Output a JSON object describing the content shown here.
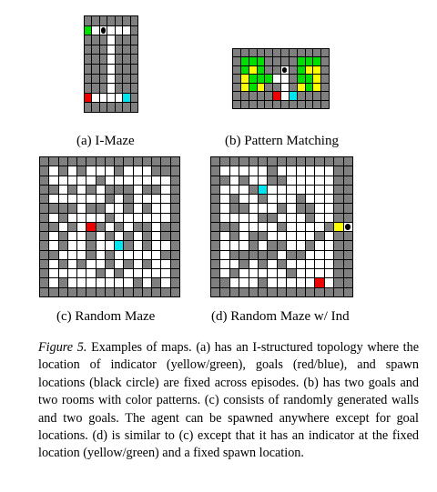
{
  "colors": {
    "wall": "#7f7f7f",
    "floor": "#ffffff",
    "grid_line": "#000000",
    "goal_red": "#ee0000",
    "goal_blue": "#00e5ee",
    "indicator_yellow": "#ffff00",
    "indicator_green": "#00e000",
    "agent": "#000000"
  },
  "legend_codes": {
    "W": "wall",
    ".": "floor",
    "R": "goal red",
    "B": "goal blue",
    "Y": "indicator yellow",
    "G": "indicator green",
    "A": "agent spawn (black circle)"
  },
  "panels": [
    {
      "id": "imaze",
      "label": "(a) I-Maze",
      "rows": [
        "WWWWWWW",
        "G.A...W",
        "WWW.WWW",
        "WWW.WWW",
        "WWW.WWW",
        "WWW.WWW",
        "WWW.WWW",
        "WWW.WWW",
        "R....BW",
        "WWWWWWW"
      ]
    },
    {
      "id": "pattern",
      "label": "(b) Pattern Matching",
      "rows": [
        "WWWWWWWWWWWW",
        "WGGGWWWWGGGW",
        "WGYGWWAWGYYW",
        "WYGGG..WGGYW",
        "WYGYWW.WYGYW",
        "WWWWWR.BWWWW",
        "WWWWWWWWWWWW"
      ]
    },
    {
      "id": "random",
      "label": "(c) Random Maze",
      "rows": [
        "WWWWWWWWWWWWWWW",
        "W.W.W...W...WWW",
        "W.....W.......W",
        "WW.W.W.WWW.WW.W",
        "W......W.W....W",
        "WWWW.WW..W.W..W",
        "W.W....W......W",
        "WW.W.RW.W.WW.WW",
        "W.W..W.W.W.W.WW",
        "W.W..W..BW.W..W",
        "WW...W.W.....WW",
        "W.W.W..W.W.W..W",
        "W.....W.W.....W",
        "W.W.......W.W.W",
        "WWWWWWWWWWWWWWW"
      ]
    },
    {
      "id": "random_ind",
      "label": "(d) Random Maze w/ Ind",
      "rows": [
        "WWWWWWWWWWWWWWW",
        "W.....W......WW",
        "WW.W..WW.....WW",
        "W...WB.......WW",
        "W.W..W...W...WW",
        "W.WW...W.WW..WW",
        "W....WW...W..WW",
        "WWW....W....WYA",
        "W.W.WW.....W.WW",
        "W...W.WW..W..WW",
        "W.WWWWW.WW...WW",
        "W..W.W.W.....WW",
        "W.W.....W....WW",
        "WW...W.....R.WW",
        "WWWWWWWWWWWWWWW"
      ]
    }
  ],
  "caption": {
    "figure_label": "Figure 5.",
    "text": "Examples of maps. (a) has an I-structured topology where the location of indicator (yellow/green), goals (red/blue), and spawn locations (black circle) are fixed across episodes. (b) has two goals and two rooms with color patterns. (c) consists of randomly generated walls and two goals. The agent can be spawned anywhere except for goal locations. (d) is similar to (c) except that it has an indicator at the fixed location (yellow/green) and a fixed spawn location."
  }
}
